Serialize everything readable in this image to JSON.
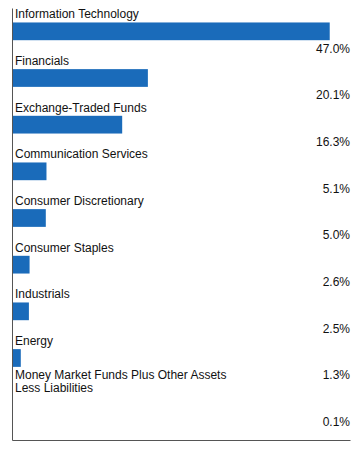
{
  "chart_data": {
    "type": "bar",
    "orientation": "horizontal",
    "categories": [
      "Information Technology",
      "Financials",
      "Exchange-Traded Funds",
      "Communication Services",
      "Consumer Discretionary",
      "Consumer Staples",
      "Industrials",
      "Energy",
      "Money Market Funds Plus Other Assets\nLess Liabilities"
    ],
    "values": [
      47.0,
      20.1,
      16.3,
      5.1,
      5.0,
      2.6,
      2.5,
      1.3,
      0.1
    ],
    "value_labels": [
      "47.0%",
      "20.1%",
      "16.3%",
      "5.1%",
      "5.0%",
      "2.6%",
      "2.5%",
      "1.3%",
      "0.1%"
    ],
    "color": "#1a6bba",
    "xlim": [
      0,
      50
    ],
    "data_labels": true,
    "tick_labels": false,
    "grid": false
  }
}
